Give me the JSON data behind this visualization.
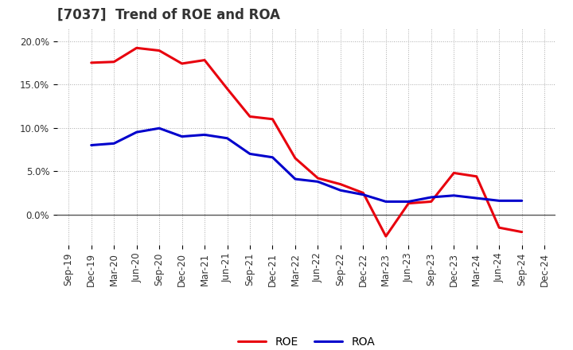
{
  "title": "[7037]  Trend of ROE and ROA",
  "x_labels": [
    "Sep-19",
    "Dec-19",
    "Mar-20",
    "Jun-20",
    "Sep-20",
    "Dec-20",
    "Mar-21",
    "Jun-21",
    "Sep-21",
    "Dec-21",
    "Mar-22",
    "Jun-22",
    "Sep-22",
    "Dec-22",
    "Mar-23",
    "Jun-23",
    "Sep-23",
    "Dec-23",
    "Mar-24",
    "Jun-24",
    "Sep-24",
    "Dec-24"
  ],
  "ROE": [
    null,
    17.5,
    17.6,
    19.2,
    18.9,
    17.4,
    17.8,
    14.5,
    11.3,
    11.0,
    6.5,
    4.2,
    3.5,
    2.5,
    -2.5,
    1.3,
    1.5,
    4.8,
    4.4,
    -1.5,
    -2.0,
    null
  ],
  "ROA": [
    null,
    8.0,
    8.2,
    9.5,
    9.95,
    9.0,
    9.2,
    8.8,
    7.0,
    6.6,
    4.1,
    3.8,
    2.8,
    2.3,
    1.5,
    1.5,
    2.0,
    2.2,
    1.9,
    1.6,
    1.6,
    null
  ],
  "roe_color": "#e8000d",
  "roa_color": "#0000cc",
  "ylim": [
    -3.5,
    21.5
  ],
  "yticks": [
    0.0,
    5.0,
    10.0,
    15.0,
    20.0
  ],
  "background_color": "#ffffff",
  "grid_color": "#aaaaaa",
  "line_width": 2.2,
  "title_fontsize": 12,
  "tick_fontsize": 8.5,
  "legend_fontsize": 10,
  "figsize": [
    7.2,
    4.4
  ],
  "dpi": 100
}
